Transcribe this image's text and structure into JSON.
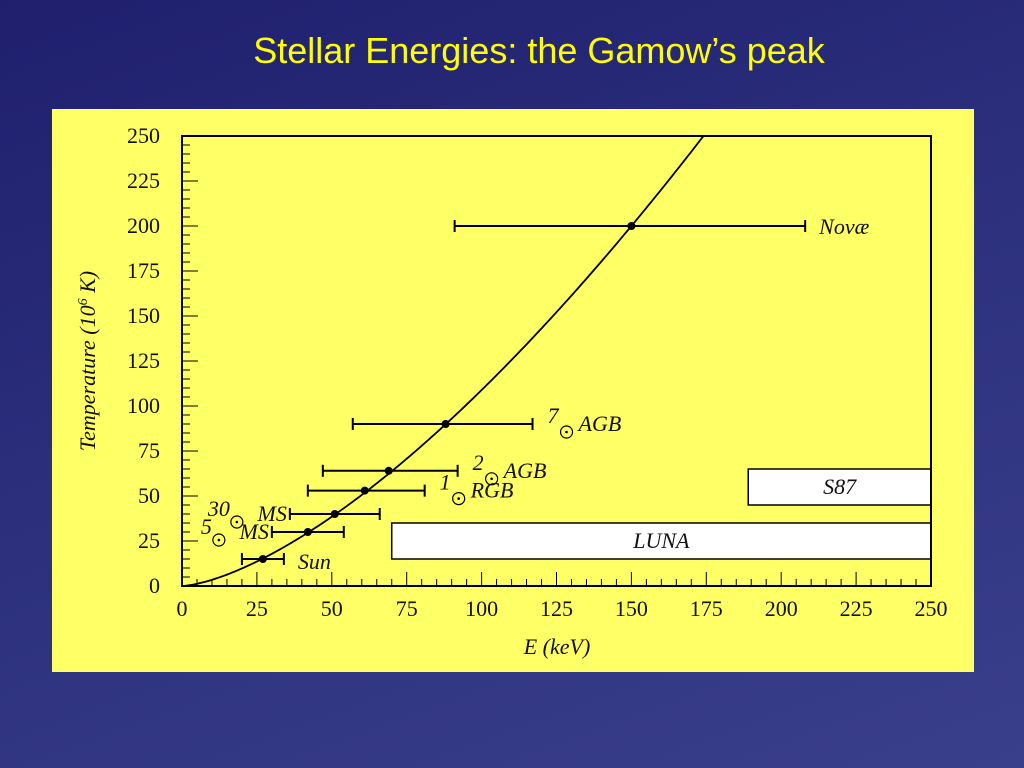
{
  "slide": {
    "title": "Stellar Energies: the Gamow’s peak"
  },
  "chart_data": {
    "type": "scatter",
    "xlabel": "E (keV)",
    "ylabel_main": "Temperature (10",
    "ylabel_exp": "6",
    "ylabel_tail": " K)",
    "xlim": [
      0,
      250
    ],
    "ylim": [
      0,
      250
    ],
    "xticks": [
      0,
      25,
      50,
      75,
      100,
      125,
      150,
      175,
      200,
      225,
      250
    ],
    "yticks": [
      0,
      25,
      50,
      75,
      100,
      125,
      150,
      175,
      200,
      225,
      250
    ],
    "curve": "T proportional to E^1.5 (Gamow peak)",
    "points": [
      {
        "name": "Sun",
        "mass": "",
        "phase": "Sun",
        "x": 27,
        "y": 15,
        "xerr": [
          20,
          34
        ]
      },
      {
        "name": "5 MS",
        "mass": "5",
        "phase": "MS",
        "x": 42,
        "y": 30,
        "xerr": [
          30,
          54
        ]
      },
      {
        "name": "30 MS",
        "mass": "30",
        "phase": "MS",
        "x": 51,
        "y": 40,
        "xerr": [
          36,
          66
        ]
      },
      {
        "name": "1 RGB",
        "mass": "1",
        "phase": "RGB",
        "x": 61,
        "y": 53,
        "xerr": [
          42,
          81
        ]
      },
      {
        "name": "2 AGB",
        "mass": "2",
        "phase": "AGB",
        "x": 69,
        "y": 64,
        "xerr": [
          47,
          92
        ]
      },
      {
        "name": "7 AGB",
        "mass": "7",
        "phase": "AGB",
        "x": 88,
        "y": 90,
        "xerr": [
          57,
          117
        ]
      },
      {
        "name": "Novæ",
        "mass": "",
        "phase": "Novæ",
        "x": 150,
        "y": 200,
        "xerr": [
          91,
          208
        ]
      }
    ],
    "boxes": [
      {
        "label": "LUNA",
        "x": [
          70,
          250
        ],
        "y": [
          15,
          35
        ]
      },
      {
        "label": "S87",
        "x": [
          189,
          250
        ],
        "y": [
          45,
          65
        ]
      }
    ]
  }
}
